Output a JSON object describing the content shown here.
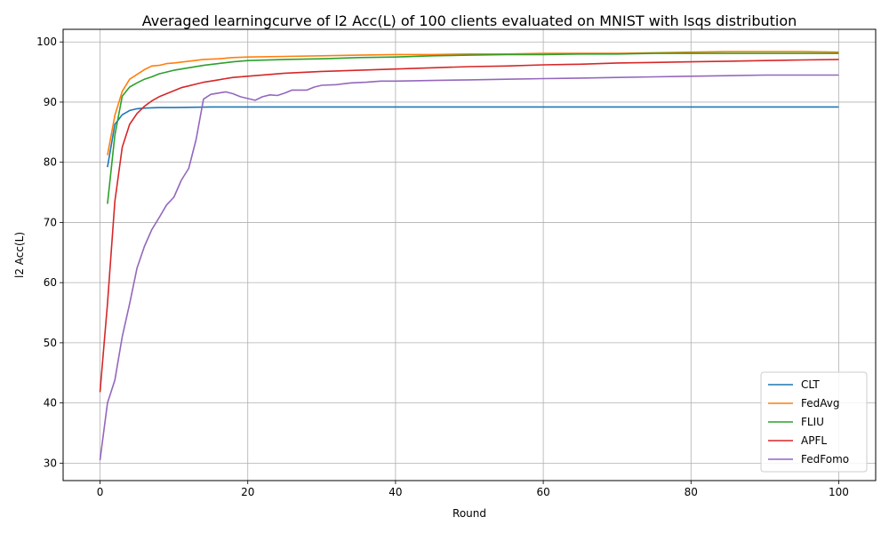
{
  "chart_data": {
    "type": "line",
    "title": "Averaged learningcurve of l2 Acc(L) of 100 clients evaluated on MNIST with lsqs distribution",
    "xlabel": "Round",
    "ylabel": "l2 Acc(L)",
    "xlim": [
      -5,
      105
    ],
    "ylim": [
      27.1,
      102.1
    ],
    "xticks": [
      0,
      20,
      40,
      60,
      80,
      100
    ],
    "yticks": [
      30,
      40,
      50,
      60,
      70,
      80,
      90,
      100
    ],
    "grid": true,
    "legend_position": "lower-right",
    "series": [
      {
        "name": "CLT",
        "color": "#1f77b4",
        "points": [
          [
            1,
            79.2
          ],
          [
            2,
            86.3
          ],
          [
            3,
            87.9
          ],
          [
            4,
            88.6
          ],
          [
            5,
            88.9
          ],
          [
            6,
            89.0
          ],
          [
            8,
            89.1
          ],
          [
            10,
            89.1
          ],
          [
            15,
            89.2
          ],
          [
            20,
            89.2
          ],
          [
            30,
            89.2
          ],
          [
            40,
            89.2
          ],
          [
            50,
            89.2
          ],
          [
            60,
            89.2
          ],
          [
            70,
            89.2
          ],
          [
            80,
            89.2
          ],
          [
            90,
            89.2
          ],
          [
            100,
            89.2
          ]
        ]
      },
      {
        "name": "FedAvg",
        "color": "#ff7f0e",
        "points": [
          [
            1,
            81.2
          ],
          [
            2,
            87.8
          ],
          [
            3,
            91.8
          ],
          [
            4,
            93.8
          ],
          [
            5,
            94.6
          ],
          [
            6,
            95.4
          ],
          [
            7,
            96.0
          ],
          [
            8,
            96.1
          ],
          [
            9,
            96.4
          ],
          [
            10,
            96.5
          ],
          [
            12,
            96.8
          ],
          [
            14,
            97.1
          ],
          [
            16,
            97.2
          ],
          [
            18,
            97.4
          ],
          [
            20,
            97.5
          ],
          [
            25,
            97.6
          ],
          [
            30,
            97.7
          ],
          [
            35,
            97.8
          ],
          [
            40,
            97.9
          ],
          [
            45,
            97.9
          ],
          [
            50,
            98.0
          ],
          [
            55,
            98.0
          ],
          [
            60,
            98.1
          ],
          [
            65,
            98.1
          ],
          [
            70,
            98.1
          ],
          [
            75,
            98.2
          ],
          [
            80,
            98.3
          ],
          [
            85,
            98.4
          ],
          [
            90,
            98.4
          ],
          [
            95,
            98.4
          ],
          [
            100,
            98.3
          ]
        ]
      },
      {
        "name": "FLIU",
        "color": "#2ca02c",
        "points": [
          [
            1,
            73.1
          ],
          [
            2,
            84.5
          ],
          [
            3,
            91.0
          ],
          [
            4,
            92.5
          ],
          [
            5,
            93.2
          ],
          [
            6,
            93.8
          ],
          [
            7,
            94.2
          ],
          [
            8,
            94.7
          ],
          [
            9,
            95.0
          ],
          [
            10,
            95.3
          ],
          [
            12,
            95.7
          ],
          [
            14,
            96.1
          ],
          [
            16,
            96.4
          ],
          [
            18,
            96.7
          ],
          [
            20,
            96.9
          ],
          [
            25,
            97.1
          ],
          [
            30,
            97.2
          ],
          [
            35,
            97.4
          ],
          [
            40,
            97.5
          ],
          [
            45,
            97.7
          ],
          [
            50,
            97.8
          ],
          [
            55,
            97.9
          ],
          [
            60,
            97.9
          ],
          [
            65,
            98.0
          ],
          [
            70,
            98.0
          ],
          [
            75,
            98.1
          ],
          [
            80,
            98.1
          ],
          [
            85,
            98.1
          ],
          [
            90,
            98.1
          ],
          [
            95,
            98.1
          ],
          [
            100,
            98.1
          ]
        ]
      },
      {
        "name": "APFL",
        "color": "#d62728",
        "points": [
          [
            0,
            41.8
          ],
          [
            1,
            56.5
          ],
          [
            2,
            73.5
          ],
          [
            3,
            82.5
          ],
          [
            4,
            86.3
          ],
          [
            5,
            88.1
          ],
          [
            6,
            89.3
          ],
          [
            7,
            90.2
          ],
          [
            8,
            90.9
          ],
          [
            9,
            91.4
          ],
          [
            10,
            91.9
          ],
          [
            11,
            92.4
          ],
          [
            12,
            92.7
          ],
          [
            13,
            93.0
          ],
          [
            14,
            93.3
          ],
          [
            15,
            93.5
          ],
          [
            16,
            93.7
          ],
          [
            17,
            93.9
          ],
          [
            18,
            94.1
          ],
          [
            20,
            94.3
          ],
          [
            25,
            94.8
          ],
          [
            30,
            95.1
          ],
          [
            35,
            95.3
          ],
          [
            40,
            95.5
          ],
          [
            45,
            95.7
          ],
          [
            50,
            95.9
          ],
          [
            55,
            96.0
          ],
          [
            60,
            96.2
          ],
          [
            65,
            96.3
          ],
          [
            70,
            96.5
          ],
          [
            75,
            96.6
          ],
          [
            80,
            96.7
          ],
          [
            85,
            96.8
          ],
          [
            90,
            96.9
          ],
          [
            95,
            97.0
          ],
          [
            100,
            97.1
          ]
        ]
      },
      {
        "name": "FedFomo",
        "color": "#9467bd",
        "points": [
          [
            0,
            30.5
          ],
          [
            1,
            40.0
          ],
          [
            2,
            43.8
          ],
          [
            3,
            51.0
          ],
          [
            4,
            56.5
          ],
          [
            5,
            62.4
          ],
          [
            6,
            66.0
          ],
          [
            7,
            68.8
          ],
          [
            8,
            70.8
          ],
          [
            9,
            72.9
          ],
          [
            10,
            74.2
          ],
          [
            11,
            77.0
          ],
          [
            12,
            79.0
          ],
          [
            13,
            83.8
          ],
          [
            14,
            90.5
          ],
          [
            15,
            91.3
          ],
          [
            16,
            91.5
          ],
          [
            17,
            91.7
          ],
          [
            18,
            91.4
          ],
          [
            19,
            90.9
          ],
          [
            20,
            90.6
          ],
          [
            21,
            90.3
          ],
          [
            22,
            90.9
          ],
          [
            23,
            91.2
          ],
          [
            24,
            91.1
          ],
          [
            25,
            91.5
          ],
          [
            26,
            92.0
          ],
          [
            28,
            92.0
          ],
          [
            29,
            92.5
          ],
          [
            30,
            92.8
          ],
          [
            32,
            92.9
          ],
          [
            34,
            93.2
          ],
          [
            36,
            93.3
          ],
          [
            38,
            93.5
          ],
          [
            40,
            93.5
          ],
          [
            45,
            93.6
          ],
          [
            50,
            93.7
          ],
          [
            55,
            93.8
          ],
          [
            60,
            93.9
          ],
          [
            65,
            94.0
          ],
          [
            70,
            94.1
          ],
          [
            75,
            94.2
          ],
          [
            80,
            94.3
          ],
          [
            85,
            94.4
          ],
          [
            90,
            94.5
          ],
          [
            95,
            94.5
          ],
          [
            100,
            94.5
          ]
        ]
      }
    ]
  }
}
